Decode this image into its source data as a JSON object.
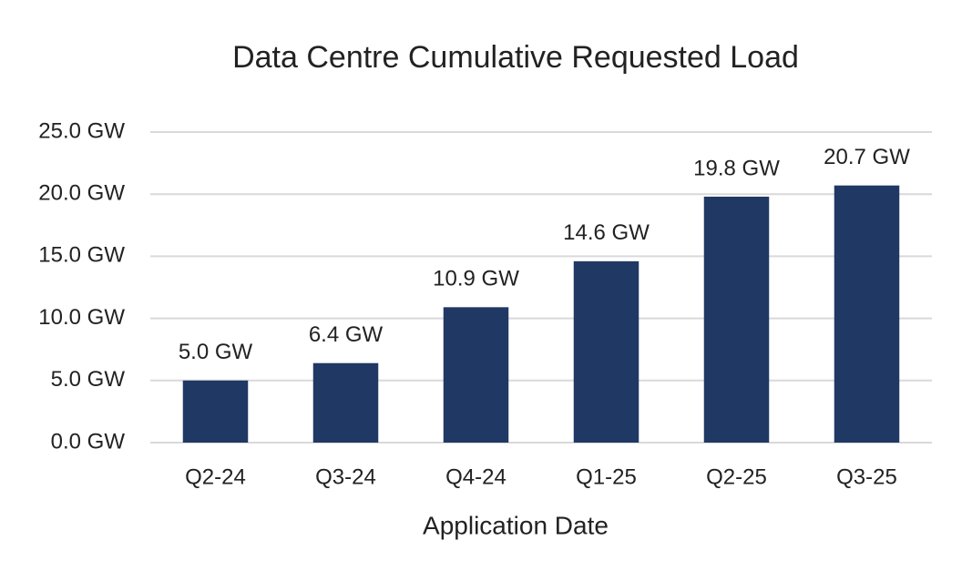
{
  "chart_data": {
    "type": "bar",
    "title": "Data Centre Cumulative Requested Load",
    "x_label": "Application Date",
    "categories": [
      "Q2-24",
      "Q3-24",
      "Q4-24",
      "Q1-25",
      "Q2-25",
      "Q3-25"
    ],
    "values": [
      5.0,
      6.4,
      10.9,
      14.6,
      19.8,
      20.7
    ],
    "value_labels": [
      "5.0 GW",
      "6.4 GW",
      "10.9 GW",
      "14.6 GW",
      "19.8 GW",
      "20.7 GW"
    ],
    "color": "#203864",
    "ylim": [
      0,
      25
    ],
    "yticks": [
      {
        "value": 0,
        "label": "0.0 GW"
      },
      {
        "value": 5,
        "label": "5.0 GW"
      },
      {
        "value": 10,
        "label": "10.0 GW"
      },
      {
        "value": 15,
        "label": "15.0 GW"
      },
      {
        "value": 20,
        "label": "20.0 GW"
      },
      {
        "value": 25,
        "label": "25.0 GW"
      }
    ],
    "grid": true
  }
}
